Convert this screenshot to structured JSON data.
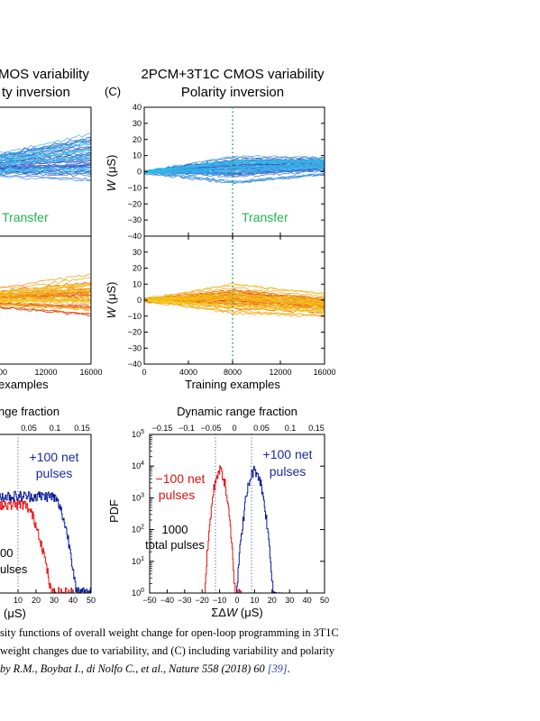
{
  "figure": {
    "left": {
      "title_line1": "MOS variability",
      "title_line2": "ty inversion",
      "transfer_label": "Transfer",
      "x_ticks": [
        "00",
        "12000",
        "16000"
      ],
      "x_label": "examples"
    },
    "right": {
      "panel_label": "(C)",
      "title_line1": "2PCM+3T1C CMOS variability",
      "title_line2": "Polarity inversion",
      "transfer_label": "Transfer",
      "y_label": "W (μS)",
      "y_ticks": [
        "40",
        "30",
        "20",
        "10",
        "0",
        "−10",
        "−20",
        "−30",
        "−40"
      ],
      "x_ticks": [
        "0",
        "4000",
        "8000",
        "12000",
        "16000"
      ],
      "x_label": "Training examples"
    },
    "bottom_left": {
      "title": "nge fraction",
      "top_ticks": [
        "0.05",
        "0.1",
        "0.15"
      ],
      "x_ticks": [
        "10",
        "20",
        "30",
        "40",
        "50"
      ],
      "plus_label_1": "+100 net",
      "plus_label_2": "pulses",
      "total_label_1": "00",
      "total_label_2": "ulses",
      "x_unit": "(μS)"
    },
    "bottom_right": {
      "title": "Dynamic range fraction",
      "top_ticks": [
        "−0.15",
        "−0.1",
        "−0.05",
        "0",
        "0.05",
        "0.1",
        "0.15"
      ],
      "x_ticks": [
        "−50",
        "−40",
        "−30",
        "−20",
        "−10",
        "0",
        "10",
        "20",
        "30",
        "40",
        "50"
      ],
      "y_ticks": [
        "10^5",
        "10^4",
        "10^3",
        "10^2",
        "10^1",
        "10^0"
      ],
      "y_label": "PDF",
      "minus_label_1": "−100 net",
      "minus_label_2": "pulses",
      "plus_label_1": "+100 net",
      "plus_label_2": "pulses",
      "total_label_1": "1000",
      "total_label_2": "total pulses",
      "x_label": "ΣΔW (μS)"
    },
    "colors": {
      "blue_dark": "#1a2a9a",
      "cyan": "#2bc0e8",
      "red": "#e01010",
      "orange": "#f59a10",
      "yellow": "#f2d21a",
      "transfer_green": "#22b24c",
      "dotted_blue": "#2b3fb0",
      "hist_red": "#ee1111",
      "hist_blue": "#0a1a99"
    }
  },
  "caption": {
    "line1": "sity functions of overall weight change for open-loop programming in 3T1C",
    "line2": "weight changes due to variability, and (C) including variability and polarity",
    "line3_text": "by R.M., Boybat I., di Nolfo C., et al., Nature 558 (2018) 60",
    "line3_cite": "[39]",
    "line3_end": "."
  }
}
